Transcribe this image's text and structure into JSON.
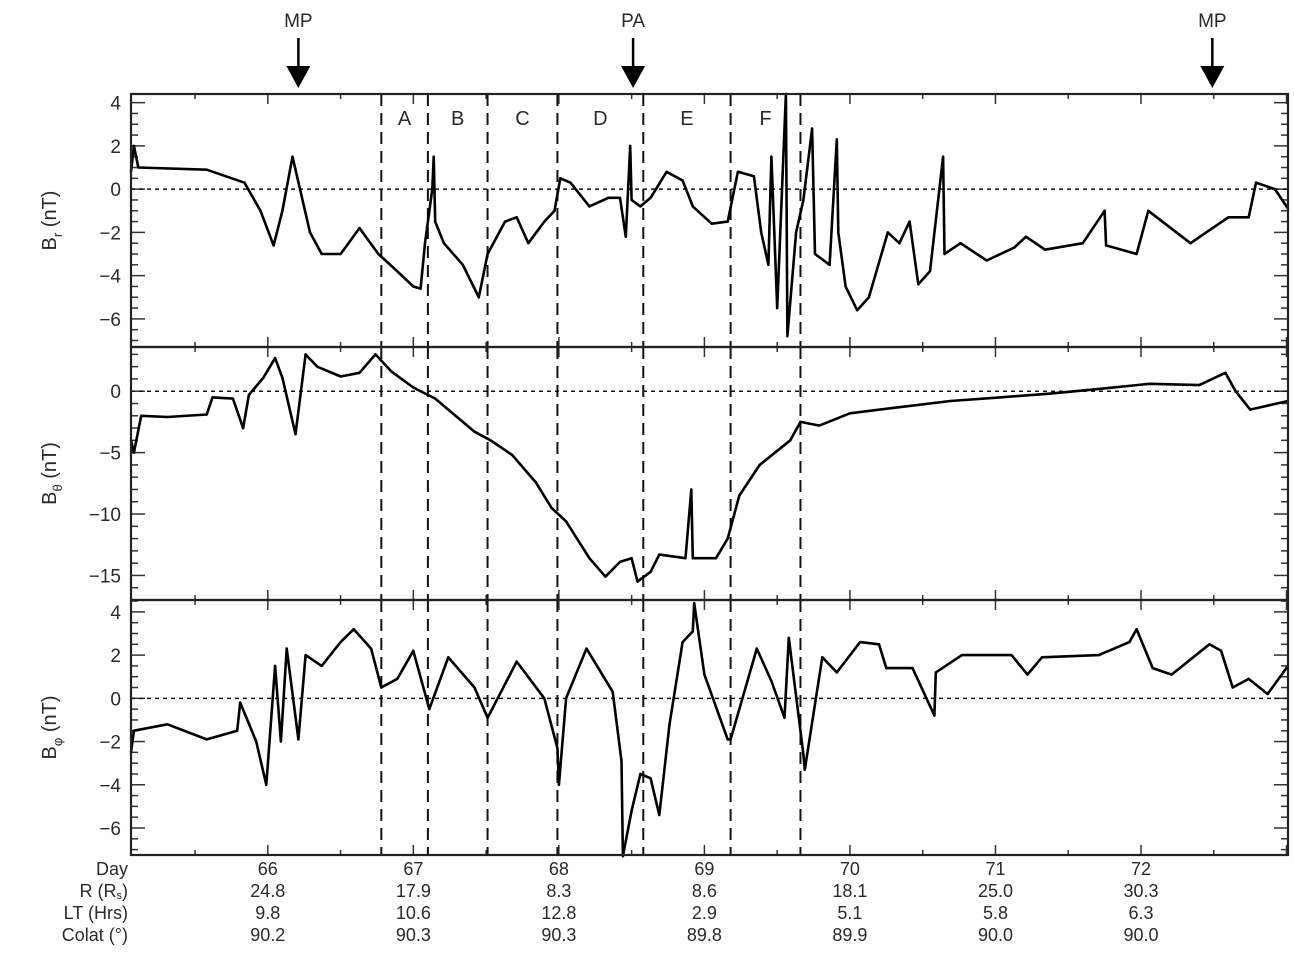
{
  "chart_data": {
    "type": "line",
    "x_unit": "Day",
    "xlim": [
      65.06,
      73.01
    ],
    "x_ticks": [
      66,
      67,
      68,
      69,
      70,
      71,
      72
    ],
    "orbit_table": {
      "rows": [
        {
          "label": "Day",
          "label_sub": "",
          "label_end": "",
          "values": [
            "66",
            "67",
            "68",
            "69",
            "70",
            "71",
            "72"
          ]
        },
        {
          "label": "R (R",
          "label_sub": "s",
          "label_end": ")",
          "values": [
            "24.8",
            "17.9",
            "8.3",
            "8.6",
            "18.1",
            "25.0",
            "30.3"
          ]
        },
        {
          "label": "LT (Hrs)",
          "label_sub": "",
          "label_end": "",
          "values": [
            "9.8",
            "10.6",
            "12.8",
            "2.9",
            "5.1",
            "5.8",
            "6.3"
          ]
        },
        {
          "label": "Colat (°)",
          "label_sub": "",
          "label_end": "",
          "values": [
            "90.2",
            "90.3",
            "90.3",
            "89.8",
            "89.9",
            "90.0",
            "90.0"
          ]
        }
      ]
    },
    "markers": [
      {
        "label": "MP",
        "day": 66.21
      },
      {
        "label": "PA",
        "day": 68.51
      },
      {
        "label": "MP",
        "day": 72.49
      }
    ],
    "region_boundaries": [
      66.78,
      67.1,
      67.51,
      67.99,
      68.58,
      69.18,
      69.66
    ],
    "regions": [
      {
        "label": "A",
        "from": 66.78,
        "to": 67.1
      },
      {
        "label": "B",
        "from": 67.1,
        "to": 67.51
      },
      {
        "label": "C",
        "from": 67.51,
        "to": 67.99
      },
      {
        "label": "D",
        "from": 67.99,
        "to": 68.58
      },
      {
        "label": "E",
        "from": 68.58,
        "to": 69.18
      },
      {
        "label": "F",
        "from": 69.18,
        "to": 69.66
      }
    ],
    "panels": [
      {
        "id": "br",
        "ylabel": "B",
        "ylabel_sub": "r",
        "ylabel_unit": "(nT)",
        "ylim": [
          -7.3,
          4.4
        ],
        "yticks": [
          4,
          2,
          0,
          -2,
          -4,
          -6
        ],
        "ytick_labels": [
          "4",
          "2",
          "0",
          "−2",
          "−4",
          "−6"
        ],
        "minor_step": 0.5,
        "zero_line": true,
        "points": [
          [
            65.06,
            0.8
          ],
          [
            65.08,
            2.0
          ],
          [
            65.11,
            1.0
          ],
          [
            65.58,
            0.9
          ],
          [
            65.84,
            0.3
          ],
          [
            65.95,
            -1.0
          ],
          [
            66.04,
            -2.6
          ],
          [
            66.1,
            -1.0
          ],
          [
            66.17,
            1.5
          ],
          [
            66.29,
            -2.0
          ],
          [
            66.37,
            -3.0
          ],
          [
            66.5,
            -3.0
          ],
          [
            66.63,
            -1.8
          ],
          [
            66.76,
            -3.0
          ],
          [
            66.89,
            -3.8
          ],
          [
            67.0,
            -4.5
          ],
          [
            67.05,
            -4.6
          ],
          [
            67.08,
            -2.5
          ],
          [
            67.13,
            0.0
          ],
          [
            67.14,
            1.5
          ],
          [
            67.15,
            -1.5
          ],
          [
            67.21,
            -2.5
          ],
          [
            67.34,
            -3.5
          ],
          [
            67.45,
            -5.0
          ],
          [
            67.51,
            -3.0
          ],
          [
            67.63,
            -1.5
          ],
          [
            67.71,
            -1.3
          ],
          [
            67.79,
            -2.5
          ],
          [
            67.9,
            -1.5
          ],
          [
            67.97,
            -1.0
          ],
          [
            68.01,
            0.5
          ],
          [
            68.08,
            0.3
          ],
          [
            68.21,
            -0.8
          ],
          [
            68.34,
            -0.4
          ],
          [
            68.42,
            -0.4
          ],
          [
            68.46,
            -2.2
          ],
          [
            68.49,
            2.0
          ],
          [
            68.5,
            -0.5
          ],
          [
            68.56,
            -0.8
          ],
          [
            68.63,
            -0.4
          ],
          [
            68.74,
            0.8
          ],
          [
            68.85,
            0.4
          ],
          [
            68.92,
            -0.8
          ],
          [
            69.05,
            -1.6
          ],
          [
            69.16,
            -1.5
          ],
          [
            69.23,
            0.8
          ],
          [
            69.34,
            0.6
          ],
          [
            69.39,
            -2.0
          ],
          [
            69.44,
            -3.5
          ],
          [
            69.46,
            1.5
          ],
          [
            69.5,
            -5.5
          ],
          [
            69.56,
            4.4
          ],
          [
            69.57,
            -6.8
          ],
          [
            69.63,
            -2.0
          ],
          [
            69.68,
            -0.5
          ],
          [
            69.74,
            2.8
          ],
          [
            69.76,
            -3.0
          ],
          [
            69.86,
            -3.5
          ],
          [
            69.91,
            2.3
          ],
          [
            69.92,
            -2.0
          ],
          [
            69.97,
            -4.5
          ],
          [
            70.05,
            -5.6
          ],
          [
            70.13,
            -5.0
          ],
          [
            70.26,
            -2.0
          ],
          [
            70.34,
            -2.5
          ],
          [
            70.41,
            -1.5
          ],
          [
            70.47,
            -4.4
          ],
          [
            70.55,
            -3.8
          ],
          [
            70.64,
            1.5
          ],
          [
            70.65,
            -3.0
          ],
          [
            70.76,
            -2.5
          ],
          [
            70.94,
            -3.3
          ],
          [
            71.13,
            -2.7
          ],
          [
            71.21,
            -2.2
          ],
          [
            71.34,
            -2.8
          ],
          [
            71.6,
            -2.5
          ],
          [
            71.75,
            -1.0
          ],
          [
            71.76,
            -2.6
          ],
          [
            71.97,
            -3.0
          ],
          [
            72.05,
            -1.0
          ],
          [
            72.34,
            -2.5
          ],
          [
            72.6,
            -1.3
          ],
          [
            72.74,
            -1.3
          ],
          [
            72.79,
            0.3
          ],
          [
            72.92,
            0.0
          ],
          [
            73.01,
            -0.9
          ]
        ]
      },
      {
        "id": "btheta",
        "ylabel": "B",
        "ylabel_sub": "θ",
        "ylabel_unit": "(nT)",
        "ylim": [
          -17.0,
          3.6
        ],
        "yticks": [
          0,
          -5,
          -10,
          -15
        ],
        "ytick_labels": [
          "0",
          "−5",
          "−10",
          "−15"
        ],
        "minor_step": 1,
        "zero_line": true,
        "points": [
          [
            65.06,
            -4.0
          ],
          [
            65.08,
            -5.0
          ],
          [
            65.13,
            -2.0
          ],
          [
            65.31,
            -2.1
          ],
          [
            65.58,
            -1.9
          ],
          [
            65.62,
            -0.5
          ],
          [
            65.76,
            -0.6
          ],
          [
            65.83,
            -3.0
          ],
          [
            65.87,
            -0.3
          ],
          [
            65.97,
            1.1
          ],
          [
            66.05,
            2.7
          ],
          [
            66.1,
            1.1
          ],
          [
            66.19,
            -3.5
          ],
          [
            66.26,
            3.0
          ],
          [
            66.34,
            2.0
          ],
          [
            66.5,
            1.2
          ],
          [
            66.63,
            1.5
          ],
          [
            66.74,
            3.0
          ],
          [
            66.85,
            1.6
          ],
          [
            67.0,
            0.3
          ],
          [
            67.15,
            -0.6
          ],
          [
            67.42,
            -3.3
          ],
          [
            67.53,
            -4.0
          ],
          [
            67.68,
            -5.2
          ],
          [
            67.84,
            -7.4
          ],
          [
            67.95,
            -9.5
          ],
          [
            68.05,
            -10.6
          ],
          [
            68.21,
            -13.6
          ],
          [
            68.32,
            -15.1
          ],
          [
            68.42,
            -13.9
          ],
          [
            68.5,
            -13.6
          ],
          [
            68.54,
            -15.5
          ],
          [
            68.63,
            -14.7
          ],
          [
            68.69,
            -13.3
          ],
          [
            68.87,
            -13.6
          ],
          [
            68.91,
            -8.0
          ],
          [
            68.92,
            -13.6
          ],
          [
            69.08,
            -13.6
          ],
          [
            69.16,
            -12.0
          ],
          [
            69.24,
            -8.5
          ],
          [
            69.38,
            -6.0
          ],
          [
            69.59,
            -4.0
          ],
          [
            69.66,
            -2.5
          ],
          [
            69.79,
            -2.8
          ],
          [
            70.0,
            -1.8
          ],
          [
            70.34,
            -1.3
          ],
          [
            70.69,
            -0.8
          ],
          [
            71.03,
            -0.5
          ],
          [
            71.37,
            -0.2
          ],
          [
            71.72,
            0.2
          ],
          [
            72.06,
            0.6
          ],
          [
            72.4,
            0.5
          ],
          [
            72.58,
            1.5
          ],
          [
            72.65,
            0.0
          ],
          [
            72.75,
            -1.5
          ],
          [
            73.01,
            -0.8
          ]
        ]
      },
      {
        "id": "bphi",
        "ylabel": "B",
        "ylabel_sub": "φ",
        "ylabel_unit": "(nT)",
        "ylim": [
          -7.25,
          4.55
        ],
        "yticks": [
          4,
          2,
          0,
          -2,
          -4,
          -6
        ],
        "ytick_labels": [
          "4",
          "2",
          "0",
          "−2",
          "−4",
          "−6"
        ],
        "minor_step": 0.5,
        "zero_line": true,
        "points": [
          [
            65.06,
            -2.5
          ],
          [
            65.08,
            -1.5
          ],
          [
            65.31,
            -1.2
          ],
          [
            65.58,
            -1.9
          ],
          [
            65.79,
            -1.5
          ],
          [
            65.81,
            -0.2
          ],
          [
            65.92,
            -2.0
          ],
          [
            65.99,
            -4.0
          ],
          [
            66.05,
            1.5
          ],
          [
            66.09,
            -2.0
          ],
          [
            66.13,
            2.3
          ],
          [
            66.21,
            -1.9
          ],
          [
            66.26,
            2.0
          ],
          [
            66.37,
            1.5
          ],
          [
            66.5,
            2.6
          ],
          [
            66.59,
            3.2
          ],
          [
            66.71,
            2.3
          ],
          [
            66.78,
            0.5
          ],
          [
            66.89,
            0.9
          ],
          [
            67.0,
            2.2
          ],
          [
            67.11,
            -0.5
          ],
          [
            67.24,
            1.9
          ],
          [
            67.42,
            0.5
          ],
          [
            67.51,
            -0.9
          ],
          [
            67.71,
            1.7
          ],
          [
            67.9,
            0.0
          ],
          [
            67.99,
            -2.3
          ],
          [
            68.0,
            -4.0
          ],
          [
            68.05,
            0.0
          ],
          [
            68.19,
            2.3
          ],
          [
            68.37,
            0.3
          ],
          [
            68.43,
            -2.9
          ],
          [
            68.44,
            -7.3
          ],
          [
            68.5,
            -5.2
          ],
          [
            68.56,
            -3.5
          ],
          [
            68.63,
            -3.7
          ],
          [
            68.69,
            -5.4
          ],
          [
            68.76,
            -1.2
          ],
          [
            68.85,
            2.6
          ],
          [
            68.92,
            3.1
          ],
          [
            68.93,
            4.4
          ],
          [
            69.0,
            1.1
          ],
          [
            69.16,
            -1.9
          ],
          [
            69.18,
            -1.9
          ],
          [
            69.36,
            2.3
          ],
          [
            69.46,
            0.8
          ],
          [
            69.55,
            -0.9
          ],
          [
            69.58,
            2.8
          ],
          [
            69.68,
            -2.6
          ],
          [
            69.69,
            -3.3
          ],
          [
            69.81,
            1.9
          ],
          [
            69.91,
            1.2
          ],
          [
            70.07,
            2.6
          ],
          [
            70.2,
            2.5
          ],
          [
            70.25,
            1.4
          ],
          [
            70.43,
            1.4
          ],
          [
            70.58,
            -0.8
          ],
          [
            70.59,
            1.2
          ],
          [
            70.77,
            2.0
          ],
          [
            71.11,
            2.0
          ],
          [
            71.22,
            1.1
          ],
          [
            71.32,
            1.9
          ],
          [
            71.71,
            2.0
          ],
          [
            71.92,
            2.6
          ],
          [
            71.97,
            3.2
          ],
          [
            72.08,
            1.4
          ],
          [
            72.21,
            1.1
          ],
          [
            72.47,
            2.5
          ],
          [
            72.55,
            2.2
          ],
          [
            72.63,
            0.5
          ],
          [
            72.74,
            0.9
          ],
          [
            72.87,
            0.2
          ],
          [
            73.01,
            1.5
          ]
        ]
      }
    ]
  }
}
